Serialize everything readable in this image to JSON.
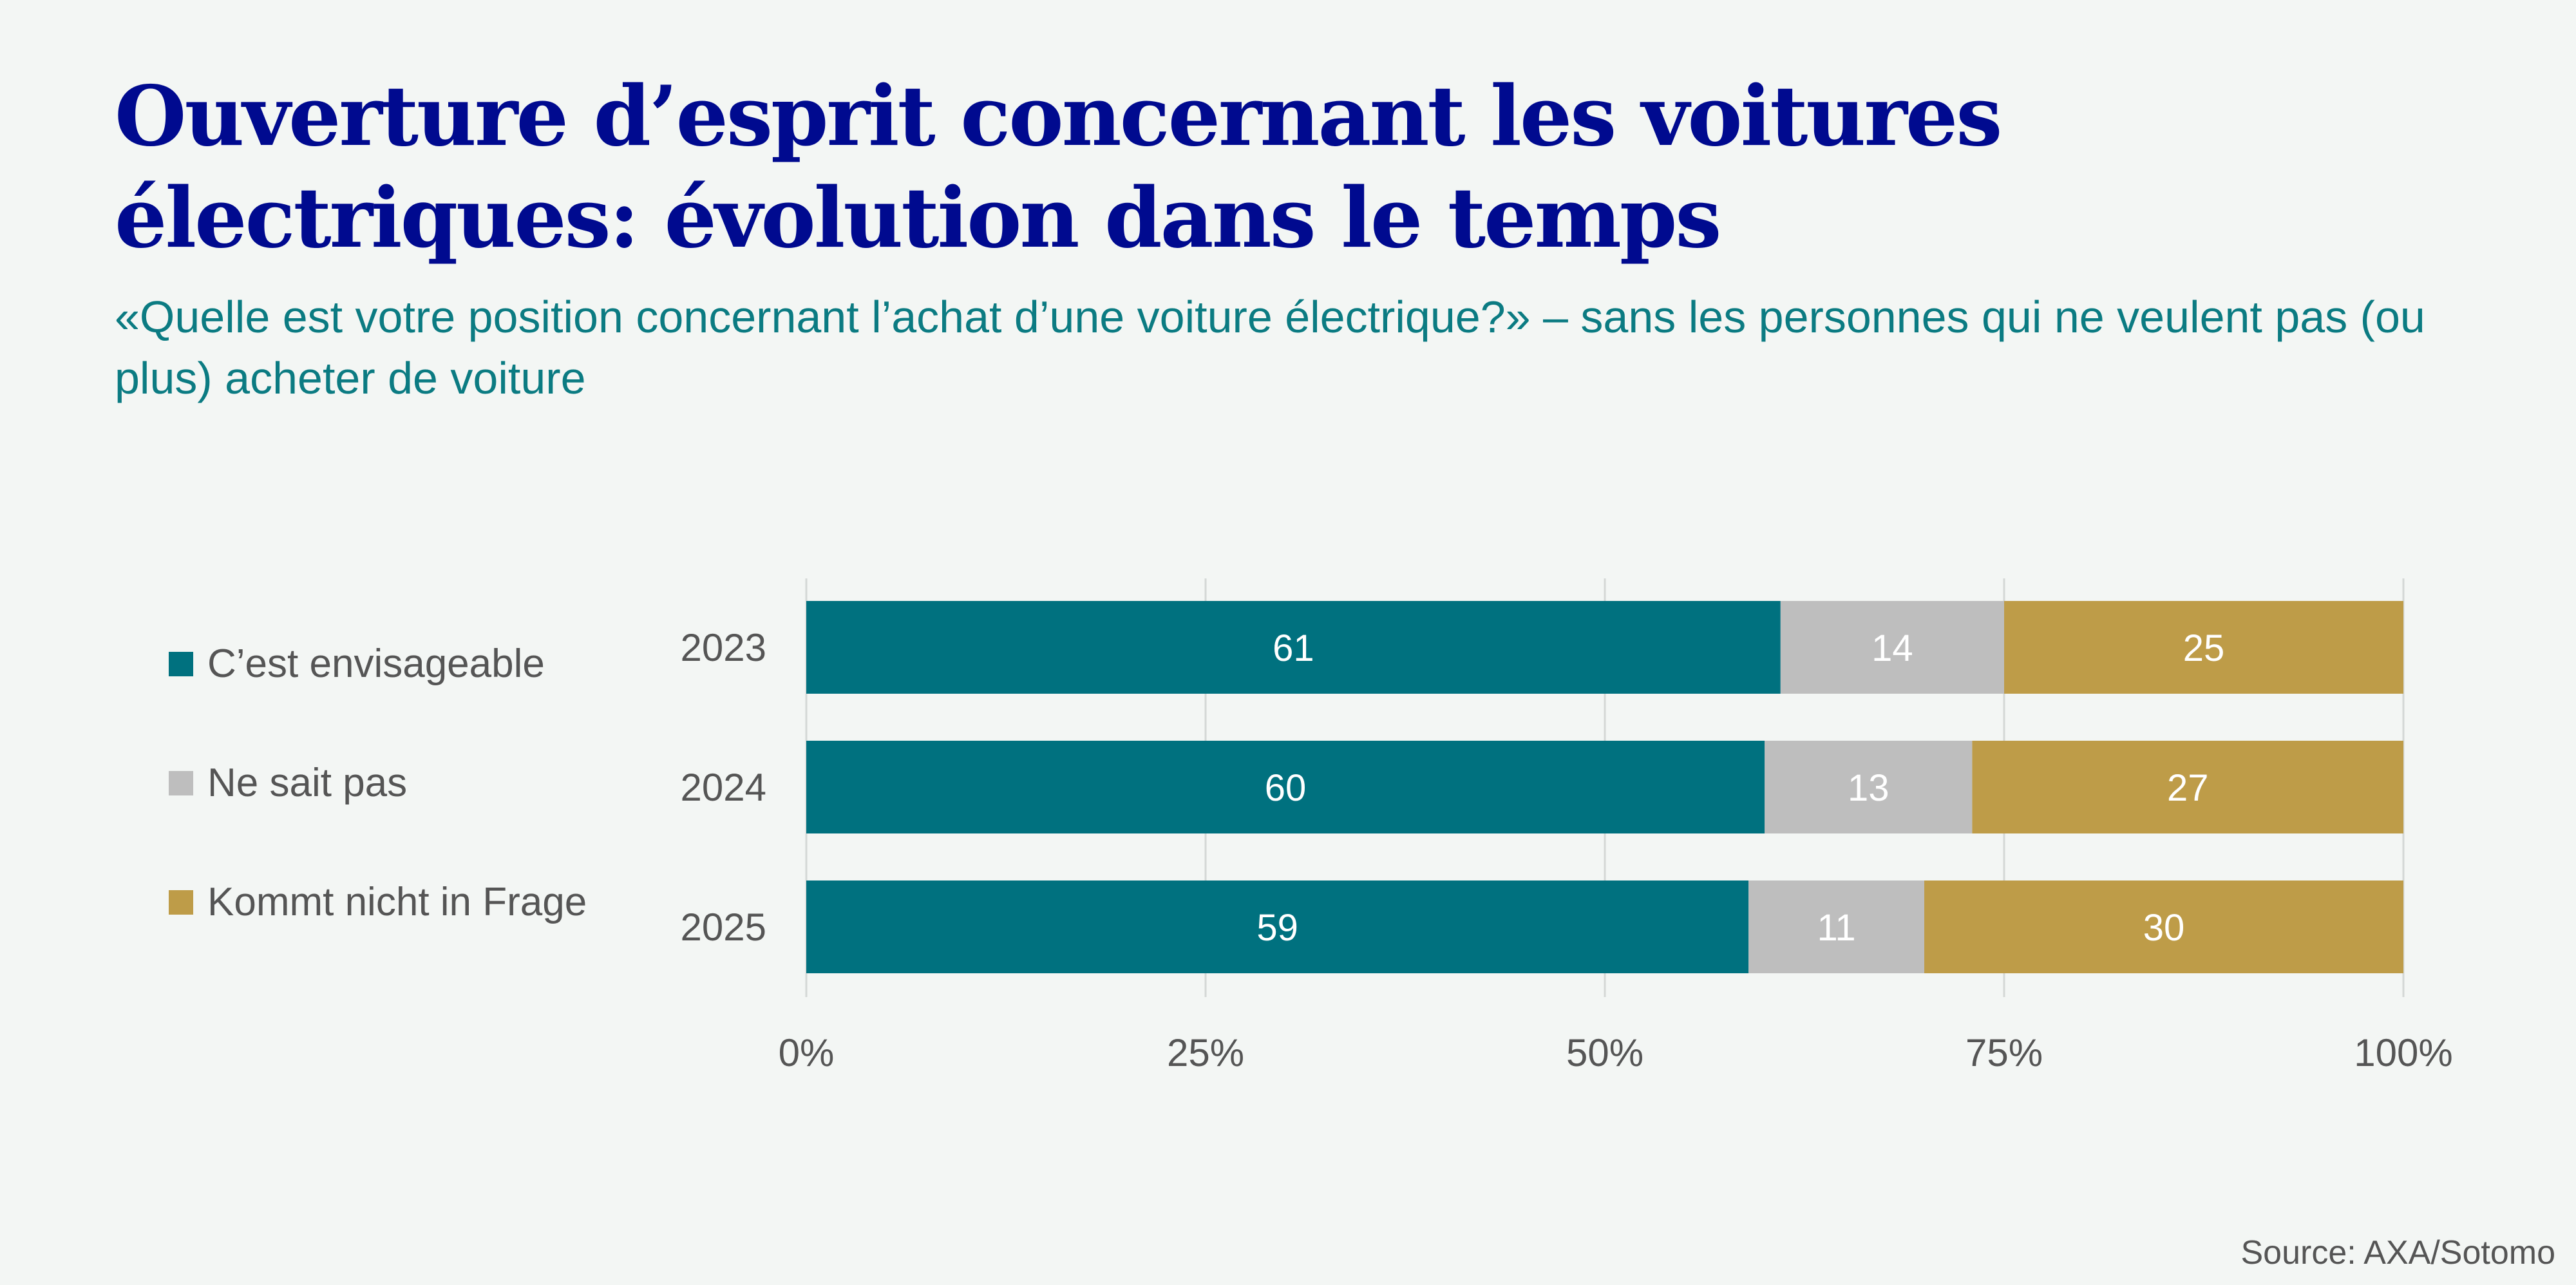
{
  "title": "Ouverture d’esprit concernant les voitures électriques: évolution dans le temps",
  "subtitle": "«Quelle est votre position concernant l’achat d’une voiture électrique?» – sans les personnes qui ne veulent pas (ou plus) acheter de voiture",
  "source": "Source: AXA/Sotomo",
  "colors": {
    "background": "#f3f6f4",
    "title": "#000a8f",
    "subtitle": "#0b7b82"
  },
  "chart_data": {
    "type": "bar",
    "orientation": "horizontal",
    "stacked": true,
    "categories": [
      "2023",
      "2024",
      "2025"
    ],
    "series": [
      {
        "name": "C’est envisageable",
        "color": "#00717f",
        "label_color": "#ffffff",
        "values": [
          61,
          60,
          59
        ]
      },
      {
        "name": "Ne sait pas",
        "color": "#bebebe",
        "label_color": "#ffffff",
        "values": [
          14,
          13,
          11
        ]
      },
      {
        "name": "Kommt nicht in Frage",
        "color": "#be9c48",
        "label_color": "#ffffff",
        "values": [
          25,
          27,
          30
        ]
      }
    ],
    "xlim": [
      0,
      100
    ],
    "x_ticks": [
      0,
      25,
      50,
      75,
      100
    ],
    "x_tick_labels": [
      "0%",
      "25%",
      "50%",
      "75%",
      "100%"
    ],
    "grid": "vertical",
    "legend_position": "left"
  }
}
